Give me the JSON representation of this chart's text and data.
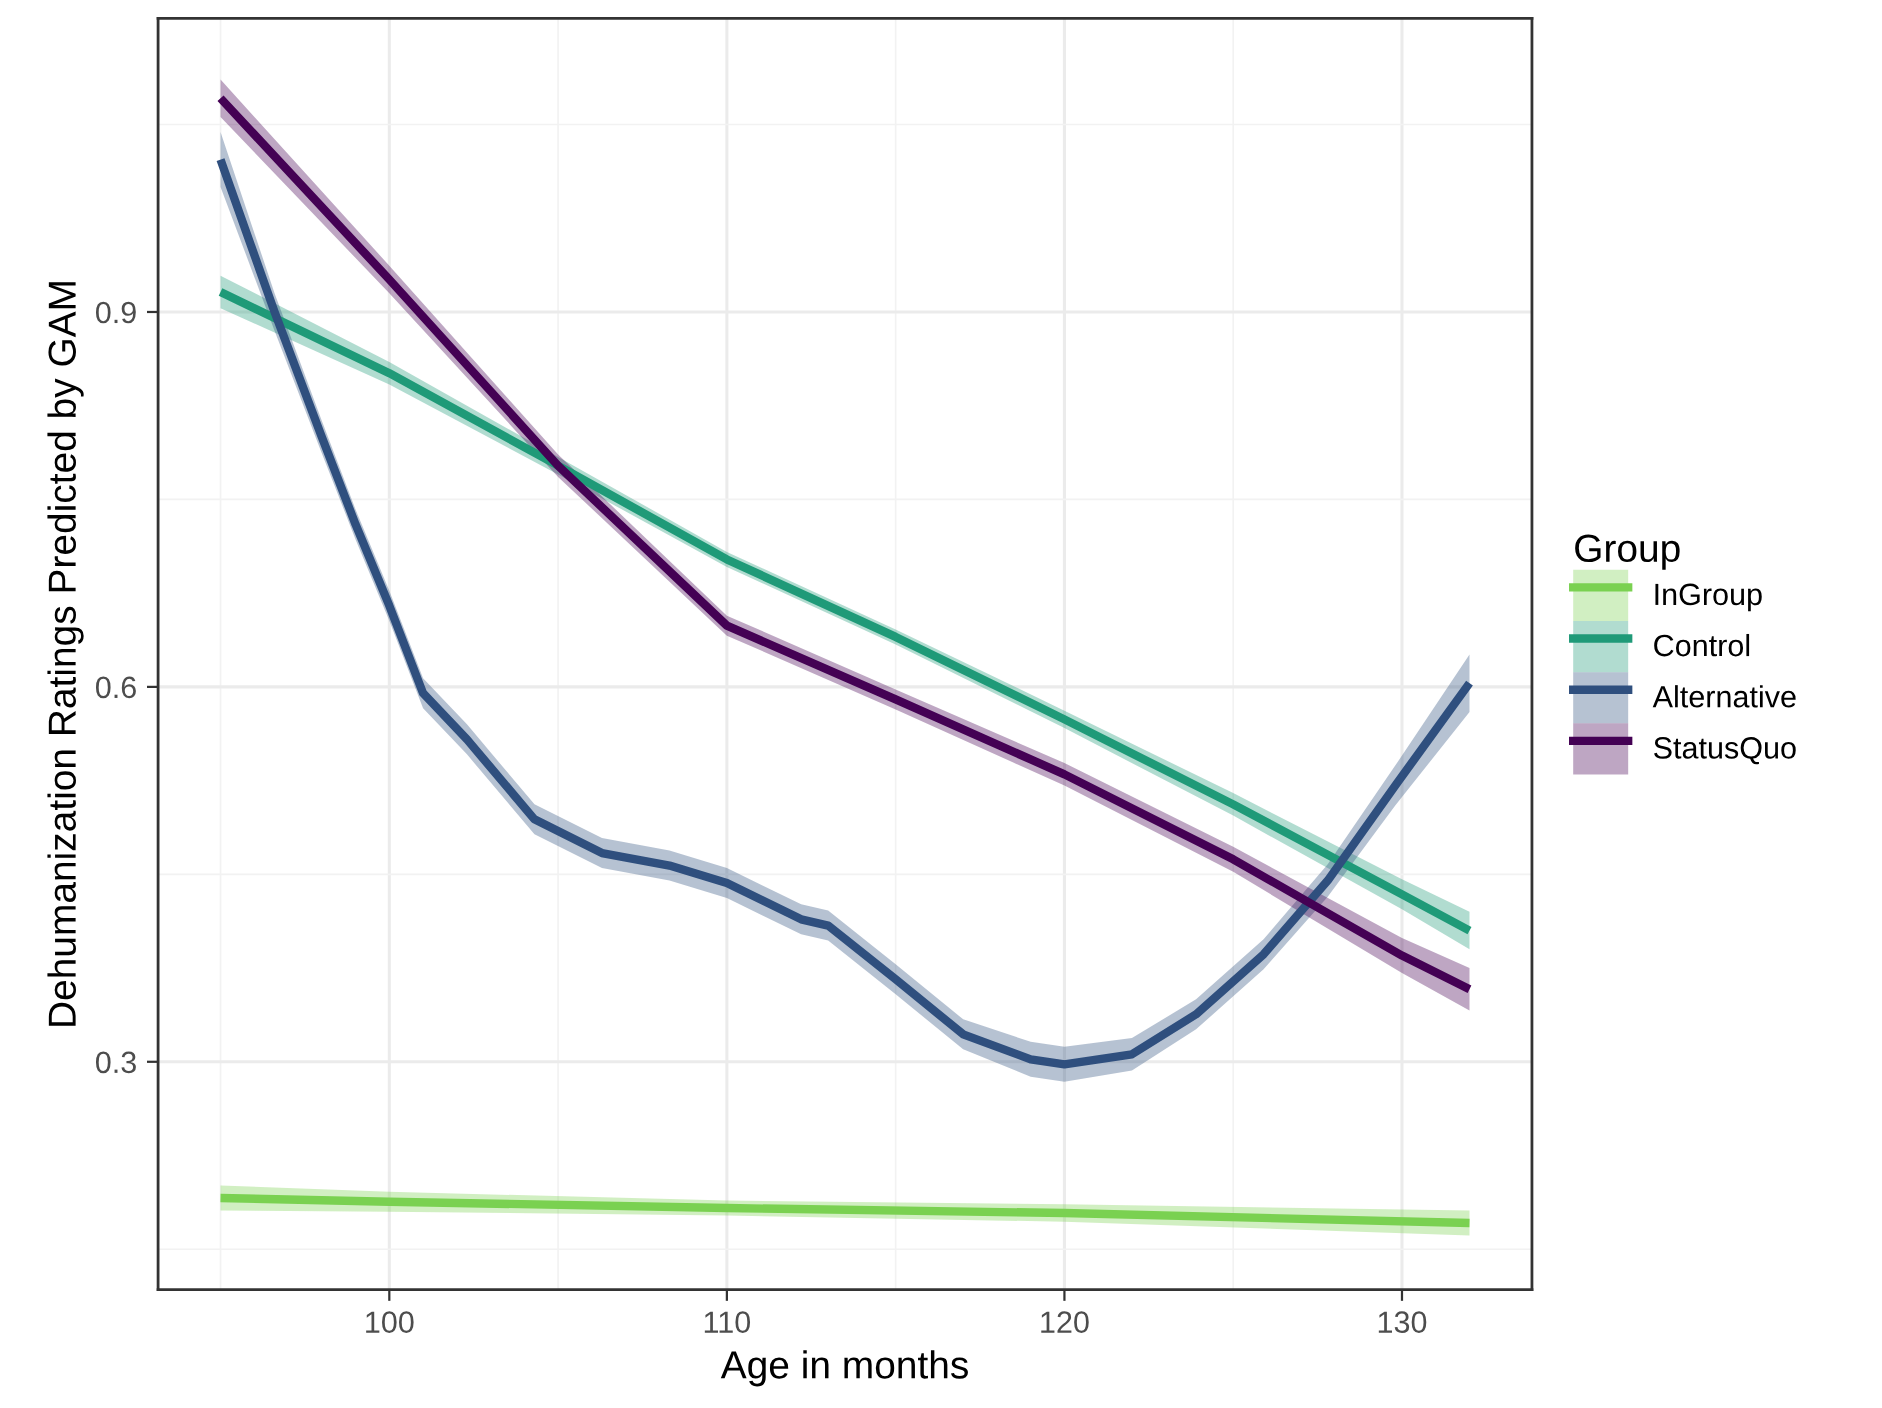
{
  "chart_data": {
    "type": "line",
    "xlabel": "Age in months",
    "ylabel": "Dehumanization Ratings Predicted by GAM",
    "legend_title": "Group",
    "legend": "right",
    "grid": true,
    "marker": "none",
    "line_style": "solid",
    "xlim": [
      93.15,
      133.85
    ],
    "xticks": [
      100,
      110,
      120,
      130
    ],
    "ylim": [
      0.1176,
      1.135
    ],
    "yticks": [
      0.3,
      0.6,
      0.9
    ],
    "series": [
      {
        "name": "InGroup",
        "color": "#7ad151",
        "x": [
          95,
          100,
          110,
          120,
          132
        ],
        "values": [
          0.191,
          0.188,
          0.183,
          0.179,
          0.171
        ],
        "lower": [
          0.181,
          0.18,
          0.177,
          0.172,
          0.161
        ],
        "upper": [
          0.201,
          0.196,
          0.189,
          0.186,
          0.181
        ]
      },
      {
        "name": "Control",
        "color": "#1f9a78",
        "x": [
          95,
          100,
          105,
          110,
          115,
          120,
          125,
          130,
          132
        ],
        "values": [
          0.916,
          0.851,
          0.777,
          0.702,
          0.64,
          0.574,
          0.506,
          0.434,
          0.405
        ],
        "lower": [
          0.903,
          0.842,
          0.77,
          0.696,
          0.634,
          0.567,
          0.497,
          0.422,
          0.39
        ],
        "upper": [
          0.929,
          0.86,
          0.784,
          0.708,
          0.646,
          0.581,
          0.515,
          0.446,
          0.42
        ]
      },
      {
        "name": "Alternative",
        "color": "#2f4f7e",
        "x": [
          95,
          96.6,
          98,
          99,
          100,
          101,
          102.3,
          104.3,
          106.3,
          108.3,
          110,
          112.2,
          113,
          115,
          117,
          119,
          120,
          122,
          123.9,
          125.9,
          127.8,
          129.8,
          132
        ],
        "values": [
          1.022,
          0.9,
          0.8,
          0.73,
          0.665,
          0.595,
          0.558,
          0.494,
          0.467,
          0.457,
          0.443,
          0.414,
          0.409,
          0.366,
          0.322,
          0.302,
          0.298,
          0.306,
          0.338,
          0.386,
          0.445,
          0.521,
          0.603
        ],
        "lower": [
          1.0,
          0.885,
          0.787,
          0.718,
          0.653,
          0.583,
          0.546,
          0.482,
          0.455,
          0.445,
          0.431,
          0.402,
          0.397,
          0.354,
          0.31,
          0.288,
          0.284,
          0.293,
          0.326,
          0.374,
          0.432,
          0.505,
          0.58
        ],
        "upper": [
          1.044,
          0.915,
          0.813,
          0.742,
          0.677,
          0.607,
          0.57,
          0.506,
          0.479,
          0.469,
          0.455,
          0.426,
          0.421,
          0.378,
          0.334,
          0.316,
          0.312,
          0.319,
          0.35,
          0.398,
          0.458,
          0.537,
          0.626
        ]
      },
      {
        "name": "StatusQuo",
        "color": "#440154",
        "x": [
          95,
          100,
          105,
          110,
          115,
          120,
          125,
          130,
          132
        ],
        "values": [
          1.071,
          0.926,
          0.777,
          0.649,
          0.59,
          0.53,
          0.462,
          0.385,
          0.358
        ],
        "lower": [
          1.056,
          0.915,
          0.768,
          0.641,
          0.582,
          0.521,
          0.452,
          0.371,
          0.341
        ],
        "upper": [
          1.086,
          0.937,
          0.786,
          0.657,
          0.598,
          0.539,
          0.472,
          0.399,
          0.375
        ]
      }
    ]
  }
}
